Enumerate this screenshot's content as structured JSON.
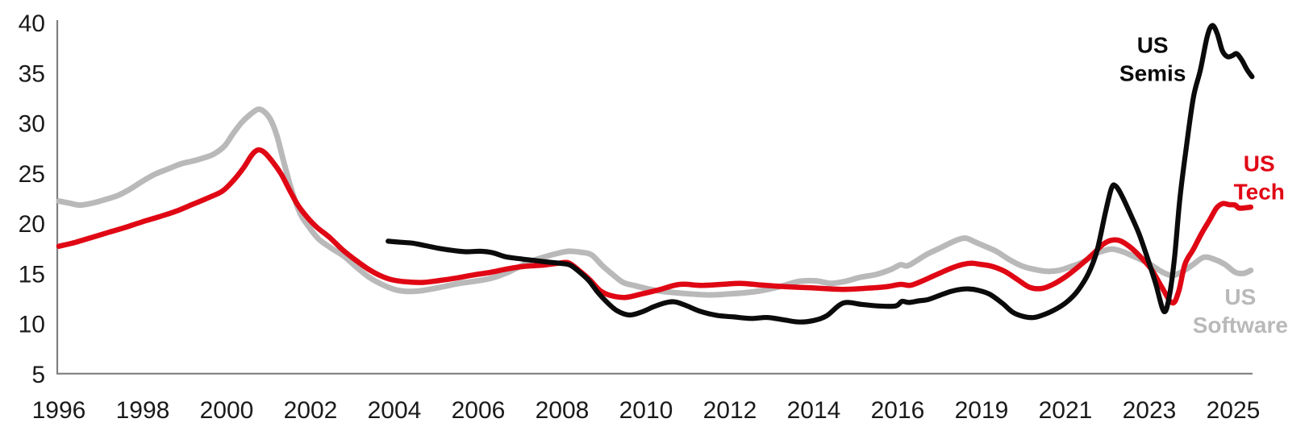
{
  "chart_data": {
    "type": "line",
    "title": "",
    "xlabel": "",
    "ylabel": "",
    "grid": false,
    "legend_position": "inline-annotations-right",
    "ylim": [
      5,
      40
    ],
    "yticks": [
      40,
      35,
      30,
      25,
      20,
      15,
      10,
      5
    ],
    "x_tick_labels": [
      "1996",
      "1998",
      "2000",
      "2002",
      "2004",
      "2006",
      "2008",
      "2010",
      "2012",
      "2014",
      "2016",
      "2019",
      "2021",
      "2023",
      "2025"
    ],
    "x_tick_years": [
      1996,
      1998,
      2000,
      2002,
      2004,
      2006,
      2008,
      2010,
      2012,
      2014,
      2016,
      2019,
      2021,
      2023,
      2025
    ],
    "colors": {
      "semis": "#0b0b0b",
      "tech": "#e00714",
      "software": "#b9b9b9",
      "axis": "#7f7f7f",
      "tick_text": "#1a1a1a"
    },
    "series": [
      {
        "name": "US Software",
        "key": "software",
        "data": [
          [
            1996.0,
            22.2
          ],
          [
            1996.25,
            22.0
          ],
          [
            1996.5,
            21.8
          ],
          [
            1996.8,
            22.0
          ],
          [
            1997.1,
            22.35
          ],
          [
            1997.4,
            22.75
          ],
          [
            1997.7,
            23.4
          ],
          [
            1998.0,
            24.2
          ],
          [
            1998.3,
            24.9
          ],
          [
            1998.6,
            25.4
          ],
          [
            1998.9,
            25.9
          ],
          [
            1999.2,
            26.2
          ],
          [
            1999.45,
            26.5
          ],
          [
            1999.7,
            26.9
          ],
          [
            1999.95,
            27.7
          ],
          [
            2000.15,
            28.9
          ],
          [
            2000.35,
            30.0
          ],
          [
            2000.55,
            30.8
          ],
          [
            2000.75,
            31.35
          ],
          [
            2000.9,
            31.1
          ],
          [
            2001.05,
            30.3
          ],
          [
            2001.2,
            28.7
          ],
          [
            2001.35,
            26.3
          ],
          [
            2001.55,
            23.3
          ],
          [
            2001.75,
            21.0
          ],
          [
            2001.95,
            19.7
          ],
          [
            2002.2,
            18.4
          ],
          [
            2002.5,
            17.5
          ],
          [
            2002.8,
            16.7
          ],
          [
            2003.1,
            15.6
          ],
          [
            2003.4,
            14.6
          ],
          [
            2003.7,
            13.9
          ],
          [
            2004.0,
            13.4
          ],
          [
            2004.3,
            13.2
          ],
          [
            2004.6,
            13.25
          ],
          [
            2004.9,
            13.45
          ],
          [
            2005.2,
            13.7
          ],
          [
            2005.55,
            14.0
          ],
          [
            2005.9,
            14.2
          ],
          [
            2006.3,
            14.5
          ],
          [
            2006.65,
            15.0
          ],
          [
            2007.0,
            15.7
          ],
          [
            2007.25,
            16.2
          ],
          [
            2007.55,
            16.6
          ],
          [
            2007.85,
            16.95
          ],
          [
            2008.15,
            17.2
          ],
          [
            2008.45,
            17.1
          ],
          [
            2008.7,
            16.85
          ],
          [
            2008.95,
            15.8
          ],
          [
            2009.2,
            14.9
          ],
          [
            2009.45,
            14.1
          ],
          [
            2009.7,
            13.8
          ],
          [
            2010.0,
            13.5
          ],
          [
            2010.3,
            13.25
          ],
          [
            2010.9,
            13.0
          ],
          [
            2011.5,
            12.85
          ],
          [
            2012.0,
            12.95
          ],
          [
            2012.45,
            13.1
          ],
          [
            2012.85,
            13.35
          ],
          [
            2013.25,
            13.75
          ],
          [
            2013.65,
            14.2
          ],
          [
            2014.05,
            14.25
          ],
          [
            2014.4,
            14.0
          ],
          [
            2014.75,
            14.2
          ],
          [
            2015.1,
            14.6
          ],
          [
            2015.5,
            14.9
          ],
          [
            2015.85,
            15.4
          ],
          [
            2016.1,
            15.85
          ],
          [
            2016.35,
            15.75
          ],
          [
            2016.7,
            16.3
          ],
          [
            2017.05,
            16.9
          ],
          [
            2017.5,
            17.5
          ],
          [
            2017.9,
            18.05
          ],
          [
            2018.2,
            18.4
          ],
          [
            2018.45,
            18.5
          ],
          [
            2018.75,
            18.15
          ],
          [
            2019.05,
            17.75
          ],
          [
            2019.35,
            17.2
          ],
          [
            2019.65,
            16.4
          ],
          [
            2019.95,
            15.75
          ],
          [
            2020.25,
            15.4
          ],
          [
            2020.55,
            15.2
          ],
          [
            2020.85,
            15.3
          ],
          [
            2021.15,
            15.7
          ],
          [
            2021.45,
            16.2
          ],
          [
            2021.75,
            17.0
          ],
          [
            2022.0,
            17.35
          ],
          [
            2022.15,
            17.4
          ],
          [
            2022.4,
            17.1
          ],
          [
            2022.7,
            16.55
          ],
          [
            2023.0,
            15.95
          ],
          [
            2023.3,
            15.15
          ],
          [
            2023.55,
            14.8
          ],
          [
            2023.8,
            15.2
          ],
          [
            2024.05,
            15.9
          ],
          [
            2024.3,
            16.6
          ],
          [
            2024.55,
            16.4
          ],
          [
            2024.8,
            15.9
          ],
          [
            2025.05,
            15.1
          ],
          [
            2025.25,
            15.0
          ],
          [
            2025.42,
            15.3
          ]
        ]
      },
      {
        "name": "US Tech",
        "key": "tech",
        "data": [
          [
            1996.0,
            17.7
          ],
          [
            1996.4,
            18.1
          ],
          [
            1996.8,
            18.6
          ],
          [
            1997.2,
            19.1
          ],
          [
            1997.6,
            19.6
          ],
          [
            1998.0,
            20.15
          ],
          [
            1998.4,
            20.65
          ],
          [
            1998.8,
            21.2
          ],
          [
            1999.2,
            21.9
          ],
          [
            1999.6,
            22.6
          ],
          [
            1999.9,
            23.2
          ],
          [
            2000.15,
            24.2
          ],
          [
            2000.4,
            25.5
          ],
          [
            2000.6,
            26.8
          ],
          [
            2000.75,
            27.3
          ],
          [
            2000.9,
            27.05
          ],
          [
            2001.1,
            26.1
          ],
          [
            2001.3,
            24.9
          ],
          [
            2001.5,
            23.3
          ],
          [
            2001.7,
            21.8
          ],
          [
            2001.9,
            20.7
          ],
          [
            2002.15,
            19.6
          ],
          [
            2002.45,
            18.6
          ],
          [
            2002.75,
            17.4
          ],
          [
            2003.05,
            16.4
          ],
          [
            2003.35,
            15.5
          ],
          [
            2003.65,
            14.8
          ],
          [
            2003.95,
            14.35
          ],
          [
            2004.3,
            14.15
          ],
          [
            2004.7,
            14.1
          ],
          [
            2005.1,
            14.3
          ],
          [
            2005.5,
            14.55
          ],
          [
            2005.9,
            14.85
          ],
          [
            2006.3,
            15.1
          ],
          [
            2006.7,
            15.45
          ],
          [
            2007.1,
            15.7
          ],
          [
            2007.5,
            15.8
          ],
          [
            2007.9,
            16.0
          ],
          [
            2008.15,
            16.05
          ],
          [
            2008.4,
            15.3
          ],
          [
            2008.65,
            14.4
          ],
          [
            2008.9,
            13.3
          ],
          [
            2009.15,
            12.8
          ],
          [
            2009.5,
            12.6
          ],
          [
            2009.9,
            12.95
          ],
          [
            2010.3,
            13.35
          ],
          [
            2010.8,
            13.9
          ],
          [
            2011.3,
            13.8
          ],
          [
            2011.8,
            13.9
          ],
          [
            2012.25,
            14.0
          ],
          [
            2012.7,
            13.85
          ],
          [
            2013.2,
            13.7
          ],
          [
            2013.7,
            13.6
          ],
          [
            2014.2,
            13.5
          ],
          [
            2014.7,
            13.4
          ],
          [
            2015.2,
            13.5
          ],
          [
            2015.7,
            13.65
          ],
          [
            2016.1,
            13.9
          ],
          [
            2016.45,
            13.8
          ],
          [
            2016.85,
            14.2
          ],
          [
            2017.25,
            14.7
          ],
          [
            2017.65,
            15.2
          ],
          [
            2018.0,
            15.6
          ],
          [
            2018.35,
            15.9
          ],
          [
            2018.65,
            16.0
          ],
          [
            2018.95,
            15.9
          ],
          [
            2019.25,
            15.7
          ],
          [
            2019.55,
            15.2
          ],
          [
            2019.85,
            14.4
          ],
          [
            2020.15,
            13.6
          ],
          [
            2020.45,
            13.5
          ],
          [
            2020.75,
            14.0
          ],
          [
            2021.05,
            14.8
          ],
          [
            2021.35,
            15.8
          ],
          [
            2021.65,
            16.9
          ],
          [
            2021.9,
            17.9
          ],
          [
            2022.1,
            18.3
          ],
          [
            2022.3,
            18.25
          ],
          [
            2022.55,
            17.6
          ],
          [
            2022.8,
            16.6
          ],
          [
            2023.05,
            15.4
          ],
          [
            2023.3,
            13.6
          ],
          [
            2023.55,
            12.05
          ],
          [
            2023.7,
            13.2
          ],
          [
            2023.85,
            15.9
          ],
          [
            2024.05,
            17.4
          ],
          [
            2024.25,
            19.0
          ],
          [
            2024.45,
            20.4
          ],
          [
            2024.6,
            21.5
          ],
          [
            2024.75,
            21.95
          ],
          [
            2024.9,
            21.85
          ],
          [
            2025.05,
            21.8
          ],
          [
            2025.15,
            21.5
          ],
          [
            2025.42,
            21.6
          ]
        ]
      },
      {
        "name": "US Semis",
        "key": "semis",
        "data": [
          [
            2003.85,
            18.2
          ],
          [
            2004.15,
            18.1
          ],
          [
            2004.45,
            18.0
          ],
          [
            2004.75,
            17.75
          ],
          [
            2005.05,
            17.5
          ],
          [
            2005.35,
            17.3
          ],
          [
            2005.7,
            17.15
          ],
          [
            2006.05,
            17.2
          ],
          [
            2006.35,
            17.05
          ],
          [
            2006.65,
            16.65
          ],
          [
            2007.0,
            16.45
          ],
          [
            2007.3,
            16.3
          ],
          [
            2007.6,
            16.15
          ],
          [
            2007.95,
            16.0
          ],
          [
            2008.2,
            15.8
          ],
          [
            2008.45,
            15.0
          ],
          [
            2008.65,
            14.2
          ],
          [
            2008.85,
            13.1
          ],
          [
            2009.05,
            12.2
          ],
          [
            2009.3,
            11.3
          ],
          [
            2009.6,
            10.85
          ],
          [
            2009.9,
            11.15
          ],
          [
            2010.2,
            11.7
          ],
          [
            2010.5,
            12.1
          ],
          [
            2010.7,
            12.15
          ],
          [
            2010.95,
            11.8
          ],
          [
            2011.3,
            11.2
          ],
          [
            2011.7,
            10.8
          ],
          [
            2012.1,
            10.65
          ],
          [
            2012.5,
            10.5
          ],
          [
            2012.9,
            10.6
          ],
          [
            2013.3,
            10.35
          ],
          [
            2013.65,
            10.15
          ],
          [
            2014.0,
            10.3
          ],
          [
            2014.3,
            10.75
          ],
          [
            2014.6,
            11.8
          ],
          [
            2014.8,
            12.1
          ],
          [
            2015.15,
            11.9
          ],
          [
            2015.55,
            11.75
          ],
          [
            2015.95,
            11.75
          ],
          [
            2016.15,
            12.2
          ],
          [
            2016.4,
            12.1
          ],
          [
            2016.75,
            12.25
          ],
          [
            2017.1,
            12.4
          ],
          [
            2017.5,
            12.8
          ],
          [
            2017.9,
            13.2
          ],
          [
            2018.25,
            13.4
          ],
          [
            2018.55,
            13.45
          ],
          [
            2018.9,
            13.3
          ],
          [
            2019.2,
            12.9
          ],
          [
            2019.5,
            12.0
          ],
          [
            2019.75,
            11.1
          ],
          [
            2020.0,
            10.7
          ],
          [
            2020.25,
            10.6
          ],
          [
            2020.5,
            10.9
          ],
          [
            2020.8,
            11.5
          ],
          [
            2021.05,
            12.2
          ],
          [
            2021.3,
            13.3
          ],
          [
            2021.55,
            15.0
          ],
          [
            2021.75,
            17.2
          ],
          [
            2021.95,
            21.0
          ],
          [
            2022.1,
            23.5
          ],
          [
            2022.2,
            23.7
          ],
          [
            2022.35,
            22.7
          ],
          [
            2022.55,
            20.9
          ],
          [
            2022.75,
            19.0
          ],
          [
            2022.95,
            16.6
          ],
          [
            2023.15,
            14.0
          ],
          [
            2023.35,
            11.2
          ],
          [
            2023.48,
            12.8
          ],
          [
            2023.6,
            16.5
          ],
          [
            2023.73,
            22.5
          ],
          [
            2023.88,
            27.5
          ],
          [
            2024.05,
            32.5
          ],
          [
            2024.22,
            35.3
          ],
          [
            2024.38,
            38.6
          ],
          [
            2024.5,
            39.7
          ],
          [
            2024.62,
            38.9
          ],
          [
            2024.74,
            37.2
          ],
          [
            2024.86,
            36.6
          ],
          [
            2024.98,
            36.7
          ],
          [
            2025.08,
            36.9
          ],
          [
            2025.2,
            36.3
          ],
          [
            2025.33,
            35.3
          ],
          [
            2025.45,
            34.6
          ]
        ]
      }
    ],
    "annotations": [
      {
        "series": "US Semis",
        "lines": [
          "US",
          "Semis"
        ],
        "color_key": "semis",
        "year": 2023.08,
        "value": 37.0
      },
      {
        "series": "US Tech",
        "lines": [
          "US",
          "Tech"
        ],
        "color_key": "tech",
        "year": 2025.62,
        "value": 25.2
      },
      {
        "series": "US Software",
        "lines": [
          "US",
          "Software"
        ],
        "color_key": "software",
        "year": 2025.17,
        "value": 11.9
      }
    ]
  }
}
